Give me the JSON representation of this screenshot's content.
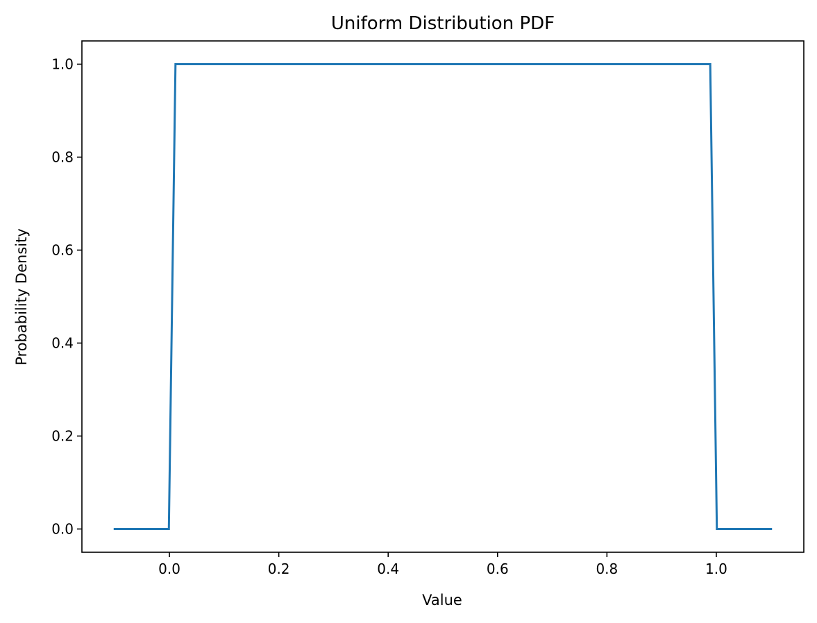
{
  "chart_data": {
    "type": "line",
    "title": "Uniform Distribution PDF",
    "xlabel": "Value",
    "ylabel": "Probability Density",
    "xlim": [
      -0.16,
      1.16
    ],
    "ylim": [
      -0.05,
      1.05
    ],
    "x_ticks": [
      0.0,
      0.2,
      0.4,
      0.6,
      0.8,
      1.0
    ],
    "x_tick_labels": [
      "0.0",
      "0.2",
      "0.4",
      "0.6",
      "0.8",
      "1.0"
    ],
    "y_ticks": [
      0.0,
      0.2,
      0.4,
      0.6,
      0.8,
      1.0
    ],
    "y_tick_labels": [
      "0.0",
      "0.2",
      "0.4",
      "0.6",
      "0.8",
      "1.0"
    ],
    "grid": false,
    "legend": "none",
    "series": [
      {
        "color": "#1f77b4",
        "x": [
          -0.1,
          -0.001,
          0.0111,
          0.9889,
          1.001,
          1.1
        ],
        "y": [
          0.0,
          0.0,
          1.0,
          1.0,
          0.0,
          0.0
        ]
      }
    ]
  }
}
